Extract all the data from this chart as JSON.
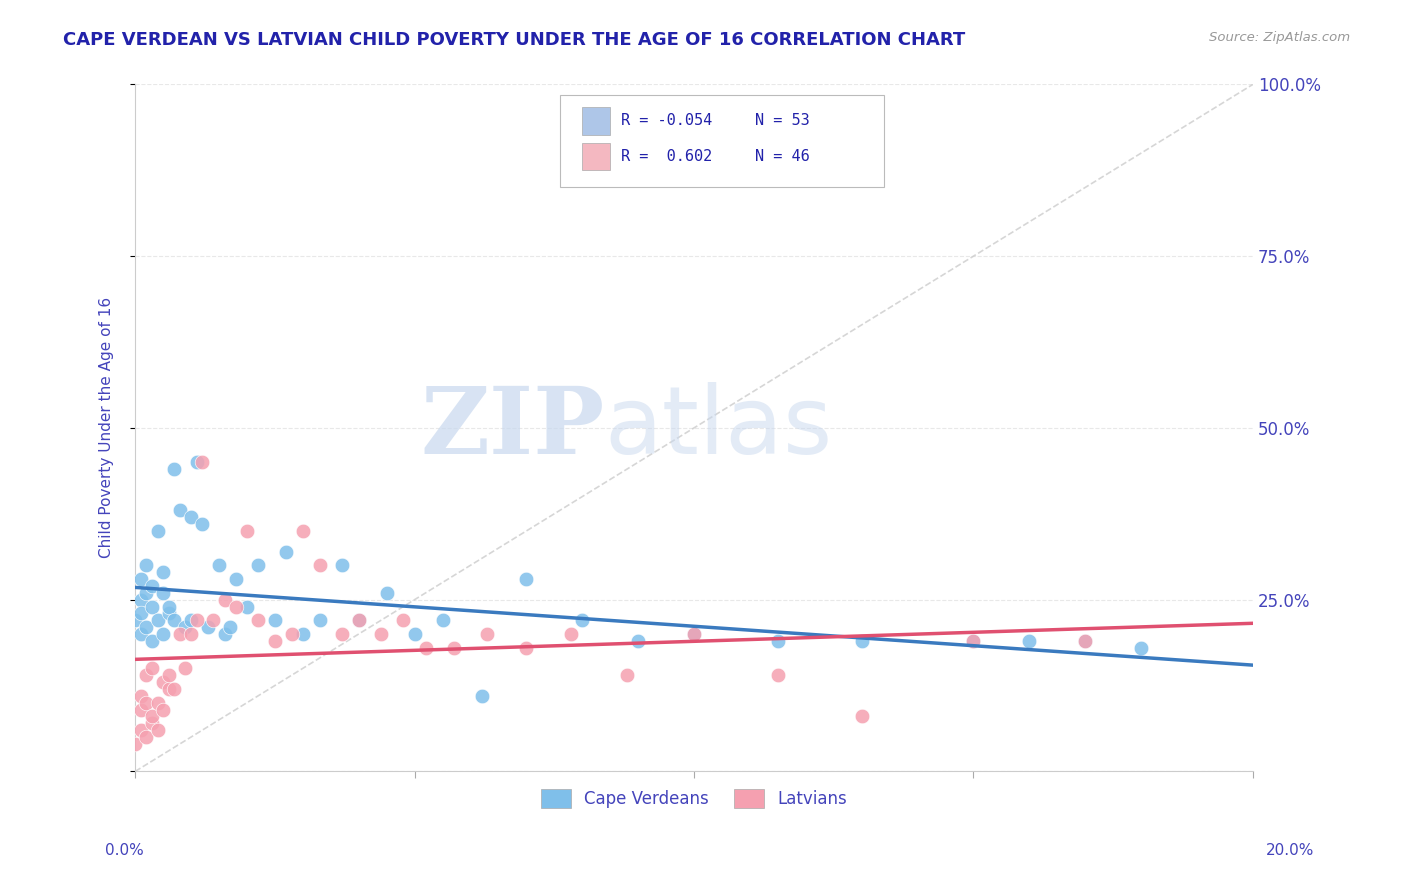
{
  "title": "CAPE VERDEAN VS LATVIAN CHILD POVERTY UNDER THE AGE OF 16 CORRELATION CHART",
  "source": "Source: ZipAtlas.com",
  "ylabel": "Child Poverty Under the Age of 16",
  "watermark_zip": "ZIP",
  "watermark_atlas": "atlas",
  "cv_color": "#7fbfea",
  "cv_line_color": "#3a7abf",
  "lv_color": "#f5a0b0",
  "lv_line_color": "#e05070",
  "ref_line_color": "#cccccc",
  "background_color": "#ffffff",
  "grid_color": "#e8e8e8",
  "title_color": "#2222aa",
  "axis_label_color": "#4444bb",
  "legend_box_color": "#aec6e8",
  "legend_box_color2": "#f4b8c1",
  "R_cv": "-0.054",
  "N_cv": "53",
  "R_lv": "0.602",
  "N_lv": "46",
  "cv_points_x": [
    0.0,
    0.001,
    0.001,
    0.001,
    0.001,
    0.002,
    0.002,
    0.002,
    0.003,
    0.003,
    0.003,
    0.004,
    0.004,
    0.005,
    0.005,
    0.005,
    0.006,
    0.006,
    0.007,
    0.007,
    0.008,
    0.009,
    0.01,
    0.01,
    0.011,
    0.012,
    0.013,
    0.015,
    0.016,
    0.017,
    0.018,
    0.02,
    0.022,
    0.025,
    0.027,
    0.03,
    0.033,
    0.037,
    0.04,
    0.045,
    0.05,
    0.055,
    0.062,
    0.07,
    0.08,
    0.09,
    0.1,
    0.115,
    0.13,
    0.15,
    0.16,
    0.17,
    0.18
  ],
  "cv_points_y": [
    0.22,
    0.2,
    0.25,
    0.28,
    0.23,
    0.21,
    0.26,
    0.3,
    0.19,
    0.24,
    0.27,
    0.22,
    0.35,
    0.2,
    0.26,
    0.29,
    0.23,
    0.24,
    0.44,
    0.22,
    0.38,
    0.21,
    0.22,
    0.37,
    0.45,
    0.36,
    0.21,
    0.3,
    0.2,
    0.21,
    0.28,
    0.24,
    0.3,
    0.22,
    0.32,
    0.2,
    0.22,
    0.3,
    0.22,
    0.26,
    0.2,
    0.22,
    0.11,
    0.28,
    0.22,
    0.19,
    0.2,
    0.19,
    0.19,
    0.19,
    0.19,
    0.19,
    0.18
  ],
  "lv_points_x": [
    0.0,
    0.001,
    0.001,
    0.001,
    0.002,
    0.002,
    0.002,
    0.003,
    0.003,
    0.003,
    0.004,
    0.004,
    0.005,
    0.005,
    0.006,
    0.006,
    0.007,
    0.008,
    0.009,
    0.01,
    0.011,
    0.012,
    0.014,
    0.016,
    0.018,
    0.02,
    0.022,
    0.025,
    0.028,
    0.03,
    0.033,
    0.037,
    0.04,
    0.044,
    0.048,
    0.052,
    0.057,
    0.063,
    0.07,
    0.078,
    0.088,
    0.1,
    0.115,
    0.13,
    0.15,
    0.17
  ],
  "lv_points_y": [
    0.04,
    0.06,
    0.09,
    0.11,
    0.05,
    0.1,
    0.14,
    0.07,
    0.08,
    0.15,
    0.06,
    0.1,
    0.09,
    0.13,
    0.12,
    0.14,
    0.12,
    0.2,
    0.15,
    0.2,
    0.22,
    0.45,
    0.22,
    0.25,
    0.24,
    0.35,
    0.22,
    0.19,
    0.2,
    0.35,
    0.3,
    0.2,
    0.22,
    0.2,
    0.22,
    0.18,
    0.18,
    0.2,
    0.18,
    0.2,
    0.14,
    0.2,
    0.14,
    0.08,
    0.19,
    0.19
  ]
}
